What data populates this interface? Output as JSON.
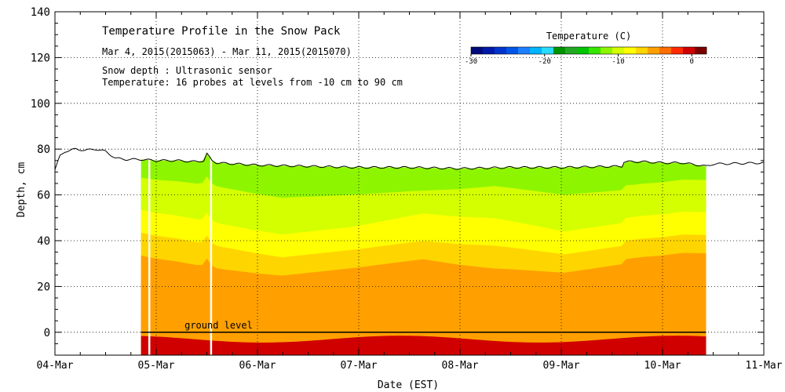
{
  "chart_data": {
    "type": "heatmap",
    "title": "Temperature Profile in the Snow Pack",
    "subtitle": "Mar  4, 2015(2015063) - Mar 11, 2015(2015070)",
    "notes": [
      "Snow depth : Ultrasonic sensor",
      "Temperature: 16 probes at levels from -10 cm to 90 cm"
    ],
    "xlabel": "Date (EST)",
    "ylabel": "Depth, cm",
    "x_tick_labels": [
      "04-Mar",
      "05-Mar",
      "06-Mar",
      "07-Mar",
      "08-Mar",
      "09-Mar",
      "10-Mar",
      "11-Mar"
    ],
    "x_range_days": [
      0,
      7
    ],
    "y_ticks": [
      0,
      20,
      40,
      60,
      80,
      100,
      120,
      140
    ],
    "ylim": [
      -10,
      140
    ],
    "grid": true,
    "ground_level_label": "ground level",
    "ground_level_y": 0,
    "colorbar": {
      "title": "Temperature (C)",
      "range": [
        -30,
        2
      ],
      "tick_values": [
        -30,
        -20,
        -10,
        0
      ],
      "tick_labels": [
        "-30",
        "-20",
        "-10",
        "0"
      ],
      "placement": "top-right",
      "colors": [
        "#000a7a",
        "#0018a8",
        "#0033cc",
        "#0055e6",
        "#1e7fff",
        "#00b4ff",
        "#28dcff",
        "#009300",
        "#22a822",
        "#00c400",
        "#35e600",
        "#8ef500",
        "#d4ff00",
        "#ffff00",
        "#ffd500",
        "#ffa000",
        "#ff6c00",
        "#ff2a00",
        "#d00000",
        "#7a0000"
      ]
    },
    "temperature_data_range_days": [
      0.85,
      6.43
    ],
    "gaps_days": [
      0.93,
      1.54
    ],
    "snow_depth": {
      "name": "Snow depth",
      "x_days": [
        0.0,
        0.05,
        0.1,
        0.2,
        0.3,
        0.4,
        0.5,
        0.6,
        0.7,
        0.85,
        1.0,
        1.2,
        1.4,
        1.47,
        1.5,
        1.55,
        1.6,
        1.8,
        2.0,
        2.5,
        3.0,
        3.5,
        4.0,
        4.5,
        5.0,
        5.6,
        5.62,
        5.8,
        6.0,
        6.2,
        6.43,
        6.5,
        7.0
      ],
      "y_cm": [
        71,
        77,
        79,
        80,
        79.5,
        80,
        79,
        76,
        75.5,
        75.5,
        75,
        75,
        74.5,
        75,
        78,
        75,
        74,
        73.5,
        73,
        72.5,
        72,
        72,
        71.5,
        72,
        72,
        72.5,
        74.5,
        74.5,
        74,
        74,
        72.5,
        73.5,
        74
      ]
    },
    "temperature_bands": [
      {
        "temp_c": -2,
        "upper_boundary_cm": [
          1,
          1,
          1,
          1,
          1,
          1,
          1,
          1,
          1
        ]
      },
      {
        "temp_c": -3,
        "upper_boundary_cm": [
          3,
          3,
          3,
          3,
          3,
          3,
          3,
          3,
          3
        ]
      },
      {
        "temp_c": -4,
        "upper_boundary_cm": [
          4,
          4,
          4,
          4,
          4,
          4,
          4,
          4,
          4
        ]
      },
      {
        "temp_c": -5,
        "upper_boundary_cm": [
          6,
          6,
          6,
          6,
          6,
          6,
          6,
          6,
          6
        ]
      }
    ]
  }
}
